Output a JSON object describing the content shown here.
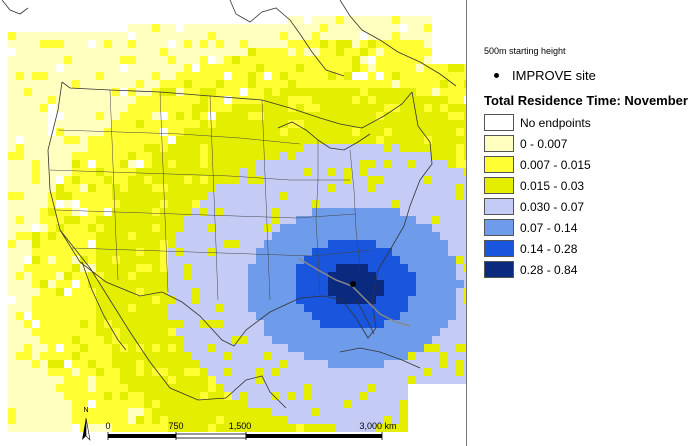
{
  "map": {
    "starting_height": "500m starting height",
    "site_label": "IMPROVE site",
    "title": "Total Residence Time: November",
    "north_label": "N",
    "scale_labels": [
      "0",
      "750",
      "1,500",
      "3,000 km"
    ],
    "classes": [
      {
        "label": "No endpoints",
        "color": "#ffffff"
      },
      {
        "label": "0 - 0.007",
        "color": "#ffffc0"
      },
      {
        "label": "0.007 - 0.015",
        "color": "#ffff33"
      },
      {
        "label": "0.015 - 0.03",
        "color": "#e4ee00"
      },
      {
        "label": "0.030 - 0.07",
        "color": "#c4ccf5"
      },
      {
        "label": "0.07 - 0.14",
        "color": "#6f9cea"
      },
      {
        "label": "0.14 - 0.28",
        "color": "#1a55dd"
      },
      {
        "label": "0.28 - 0.84",
        "color": "#0a2a80"
      }
    ]
  }
}
